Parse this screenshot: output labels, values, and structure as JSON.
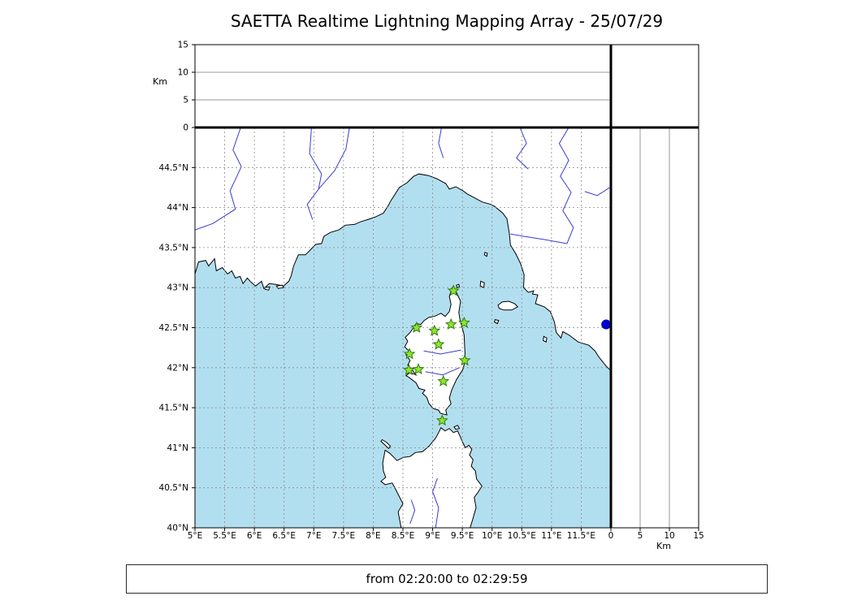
{
  "title": "SAETTA Realtime Lightning Mapping Array - 25/07/29",
  "time_bar": {
    "label": "from 02:20:00 to 02:29:59"
  },
  "colors": {
    "sea": "#b2dfef",
    "land": "#ffffff",
    "coastline": "#000000",
    "river": "#3b3bd1",
    "grid": "#8a8a8a",
    "panel_grid": "#9a9a9a",
    "station_fill": "#8ae82e",
    "station_edge": "#35790f",
    "source_fill": "#0000cc",
    "frame": "#000000"
  },
  "chart_data": {
    "type": "scatter",
    "title": "SAETTA Realtime Lightning Mapping Array - 25/07/29",
    "time_window": "from 02:20:00 to 02:29:59",
    "map_panel": {
      "lon_range": [
        5.0,
        12.0
      ],
      "lat_range": [
        40.0,
        45.0
      ],
      "lon_ticks": [
        5,
        5.5,
        6,
        6.5,
        7,
        7.5,
        8,
        8.5,
        9,
        9.5,
        10,
        10.5,
        11,
        11.5
      ],
      "lon_tick_labels": [
        "5°E",
        "5.5°E",
        "6°E",
        "6.5°E",
        "7°E",
        "7.5°E",
        "8°E",
        "8.5°E",
        "9°E",
        "9.5°E",
        "10°E",
        "10.5°E",
        "11°E",
        "11.5°E"
      ],
      "lat_ticks": [
        40,
        40.5,
        41,
        41.5,
        42,
        42.5,
        43,
        43.5,
        44,
        44.5
      ],
      "lat_tick_labels": [
        "40°N",
        "40.5°N",
        "41°N",
        "41.5°N",
        "42°N",
        "42.5°N",
        "43°N",
        "43.5°N",
        "44°N",
        "44.5°N"
      ],
      "grid": true
    },
    "altitude_axis": {
      "range_km": [
        0,
        15
      ],
      "ticks": [
        0,
        5,
        10,
        15
      ],
      "tick_labels": [
        "0",
        "5",
        "10",
        "15"
      ],
      "unit_label": "Km",
      "gridlines_km": [
        5,
        10
      ]
    },
    "stations": [
      {
        "lon": 9.35,
        "lat": 42.96
      },
      {
        "lon": 8.73,
        "lat": 42.5
      },
      {
        "lon": 9.03,
        "lat": 42.46
      },
      {
        "lon": 9.31,
        "lat": 42.54
      },
      {
        "lon": 9.53,
        "lat": 42.56
      },
      {
        "lon": 9.1,
        "lat": 42.29
      },
      {
        "lon": 8.61,
        "lat": 42.17
      },
      {
        "lon": 9.54,
        "lat": 42.09
      },
      {
        "lon": 8.6,
        "lat": 41.97
      },
      {
        "lon": 8.76,
        "lat": 41.98
      },
      {
        "lon": 9.18,
        "lat": 41.83
      },
      {
        "lon": 9.16,
        "lat": 41.34
      }
    ],
    "sources": [
      {
        "lon": 11.92,
        "lat": 42.54,
        "alt_km": 0
      }
    ],
    "basemap": {
      "mainland": [
        [
          5.0,
          43.17
        ],
        [
          5.06,
          43.32
        ],
        [
          5.18,
          43.34
        ],
        [
          5.23,
          43.27
        ],
        [
          5.33,
          43.36
        ],
        [
          5.36,
          43.21
        ],
        [
          5.46,
          43.25
        ],
        [
          5.55,
          43.17
        ],
        [
          5.62,
          43.21
        ],
        [
          5.68,
          43.12
        ],
        [
          5.76,
          43.14
        ],
        [
          5.81,
          43.05
        ],
        [
          5.88,
          43.12
        ],
        [
          5.94,
          43.07
        ],
        [
          6.02,
          43.02
        ],
        [
          6.12,
          43.08
        ],
        [
          6.16,
          42.99
        ],
        [
          6.25,
          43.05
        ],
        [
          6.36,
          43.04
        ],
        [
          6.49,
          43.02
        ],
        [
          6.58,
          43.08
        ],
        [
          6.62,
          43.15
        ],
        [
          6.66,
          43.27
        ],
        [
          6.74,
          43.41
        ],
        [
          6.86,
          43.41
        ],
        [
          6.94,
          43.47
        ],
        [
          7.03,
          43.54
        ],
        [
          7.13,
          43.55
        ],
        [
          7.17,
          43.64
        ],
        [
          7.28,
          43.69
        ],
        [
          7.42,
          43.72
        ],
        [
          7.53,
          43.78
        ],
        [
          7.69,
          43.79
        ],
        [
          7.78,
          43.82
        ],
        [
          7.91,
          43.85
        ],
        [
          8.03,
          43.88
        ],
        [
          8.17,
          43.93
        ],
        [
          8.25,
          44.02
        ],
        [
          8.3,
          44.09
        ],
        [
          8.44,
          44.25
        ],
        [
          8.57,
          44.31
        ],
        [
          8.68,
          44.39
        ],
        [
          8.77,
          44.42
        ],
        [
          8.93,
          44.4
        ],
        [
          9.07,
          44.36
        ],
        [
          9.22,
          44.3
        ],
        [
          9.28,
          44.23
        ],
        [
          9.39,
          44.26
        ],
        [
          9.51,
          44.21
        ],
        [
          9.58,
          44.17
        ],
        [
          9.71,
          44.12
        ],
        [
          9.83,
          44.07
        ],
        [
          9.98,
          44.04
        ],
        [
          10.05,
          44.01
        ],
        [
          10.18,
          43.93
        ],
        [
          10.25,
          43.86
        ],
        [
          10.29,
          43.68
        ],
        [
          10.31,
          43.53
        ],
        [
          10.4,
          43.42
        ],
        [
          10.48,
          43.3
        ],
        [
          10.54,
          43.16
        ],
        [
          10.53,
          43.0
        ],
        [
          10.61,
          42.94
        ],
        [
          10.7,
          42.96
        ],
        [
          10.68,
          42.92
        ],
        [
          10.77,
          42.91
        ],
        [
          10.73,
          42.8
        ],
        [
          10.88,
          42.76
        ],
        [
          10.98,
          42.7
        ],
        [
          11.05,
          42.57
        ],
        [
          11.08,
          42.44
        ],
        [
          11.16,
          42.37
        ],
        [
          11.19,
          42.45
        ],
        [
          11.29,
          42.41
        ],
        [
          11.45,
          42.32
        ],
        [
          11.63,
          42.28
        ],
        [
          11.73,
          42.21
        ],
        [
          11.8,
          42.13
        ],
        [
          11.92,
          42.02
        ],
        [
          12.0,
          41.96
        ],
        [
          12.0,
          45.0
        ],
        [
          5.0,
          45.0
        ]
      ],
      "corsica": [
        [
          9.33,
          43.0
        ],
        [
          9.4,
          42.94
        ],
        [
          9.47,
          42.83
        ],
        [
          9.44,
          42.69
        ],
        [
          9.46,
          42.6
        ],
        [
          9.53,
          42.41
        ],
        [
          9.54,
          42.23
        ],
        [
          9.55,
          42.1
        ],
        [
          9.51,
          41.98
        ],
        [
          9.4,
          41.85
        ],
        [
          9.32,
          41.72
        ],
        [
          9.28,
          41.62
        ],
        [
          9.31,
          41.55
        ],
        [
          9.22,
          41.47
        ],
        [
          9.24,
          41.41
        ],
        [
          9.13,
          41.43
        ],
        [
          9.1,
          41.47
        ],
        [
          9.01,
          41.49
        ],
        [
          8.94,
          41.55
        ],
        [
          8.9,
          41.63
        ],
        [
          8.83,
          41.68
        ],
        [
          8.87,
          41.72
        ],
        [
          8.77,
          41.74
        ],
        [
          8.72,
          41.81
        ],
        [
          8.6,
          41.88
        ],
        [
          8.55,
          41.9
        ],
        [
          8.62,
          41.94
        ],
        [
          8.72,
          41.91
        ],
        [
          8.66,
          41.97
        ],
        [
          8.58,
          42.03
        ],
        [
          8.62,
          42.09
        ],
        [
          8.55,
          42.16
        ],
        [
          8.6,
          42.21
        ],
        [
          8.53,
          42.26
        ],
        [
          8.58,
          42.33
        ],
        [
          8.54,
          42.38
        ],
        [
          8.61,
          42.43
        ],
        [
          8.66,
          42.48
        ],
        [
          8.72,
          42.55
        ],
        [
          8.8,
          42.54
        ],
        [
          8.86,
          42.59
        ],
        [
          8.94,
          42.63
        ],
        [
          9.03,
          42.64
        ],
        [
          9.14,
          42.68
        ],
        [
          9.21,
          42.64
        ],
        [
          9.28,
          42.7
        ],
        [
          9.31,
          42.79
        ],
        [
          9.28,
          42.89
        ]
      ],
      "sardinia": [
        [
          8.47,
          40.0
        ],
        [
          8.42,
          40.2
        ],
        [
          8.5,
          40.3
        ],
        [
          8.39,
          40.46
        ],
        [
          8.32,
          40.56
        ],
        [
          8.2,
          40.54
        ],
        [
          8.13,
          40.58
        ],
        [
          8.21,
          40.63
        ],
        [
          8.17,
          40.71
        ],
        [
          8.16,
          40.81
        ],
        [
          8.2,
          40.97
        ],
        [
          8.28,
          40.93
        ],
        [
          8.4,
          40.84
        ],
        [
          8.51,
          40.88
        ],
        [
          8.62,
          40.89
        ],
        [
          8.71,
          40.94
        ],
        [
          8.83,
          40.95
        ],
        [
          8.94,
          41.02
        ],
        [
          9.05,
          41.12
        ],
        [
          9.1,
          41.19
        ],
        [
          9.14,
          41.25
        ],
        [
          9.21,
          41.21
        ],
        [
          9.28,
          41.24
        ],
        [
          9.35,
          41.19
        ],
        [
          9.42,
          41.21
        ],
        [
          9.47,
          41.13
        ],
        [
          9.51,
          41.06
        ],
        [
          9.55,
          41.0
        ],
        [
          9.61,
          41.03
        ],
        [
          9.66,
          40.98
        ],
        [
          9.62,
          40.91
        ],
        [
          9.68,
          40.85
        ],
        [
          9.65,
          40.77
        ],
        [
          9.72,
          40.71
        ],
        [
          9.74,
          40.61
        ],
        [
          9.83,
          40.52
        ],
        [
          9.76,
          40.44
        ],
        [
          9.7,
          40.38
        ],
        [
          9.73,
          40.25
        ],
        [
          9.68,
          40.12
        ],
        [
          9.63,
          40.0
        ]
      ],
      "islands": [
        {
          "name": "elba",
          "points": [
            [
              10.1,
              42.78
            ],
            [
              10.17,
              42.82
            ],
            [
              10.28,
              42.83
            ],
            [
              10.38,
              42.8
            ],
            [
              10.43,
              42.76
            ],
            [
              10.33,
              42.72
            ],
            [
              10.2,
              42.72
            ],
            [
              10.12,
              42.74
            ]
          ]
        },
        {
          "name": "capraia",
          "points": [
            [
              9.81,
              43.08
            ],
            [
              9.87,
              43.06
            ],
            [
              9.86,
              43.0
            ],
            [
              9.8,
              43.02
            ]
          ]
        },
        {
          "name": "gorgona",
          "points": [
            [
              9.88,
              43.44
            ],
            [
              9.92,
              43.43
            ],
            [
              9.91,
              43.39
            ],
            [
              9.87,
              43.41
            ]
          ]
        },
        {
          "name": "giglio",
          "points": [
            [
              10.87,
              42.39
            ],
            [
              10.92,
              42.37
            ],
            [
              10.91,
              42.32
            ],
            [
              10.86,
              42.34
            ]
          ]
        },
        {
          "name": "pianosa",
          "points": [
            [
              10.05,
              42.6
            ],
            [
              10.11,
              42.59
            ],
            [
              10.09,
              42.55
            ],
            [
              10.04,
              42.57
            ]
          ]
        },
        {
          "name": "giraglia",
          "points": [
            [
              9.4,
              43.03
            ],
            [
              9.44,
              43.04
            ],
            [
              9.45,
              43.01
            ],
            [
              9.41,
              43.0
            ]
          ]
        },
        {
          "name": "porquerolles",
          "points": [
            [
              6.17,
              43.0
            ],
            [
              6.26,
              43.01
            ],
            [
              6.24,
              42.97
            ],
            [
              6.18,
              42.98
            ]
          ]
        },
        {
          "name": "port-cros",
          "points": [
            [
              6.37,
              43.02
            ],
            [
              6.47,
              43.03
            ],
            [
              6.49,
              43.0
            ],
            [
              6.4,
              42.99
            ]
          ]
        },
        {
          "name": "asinara",
          "points": [
            [
              8.15,
              41.1
            ],
            [
              8.22,
              41.07
            ],
            [
              8.29,
              41.02
            ],
            [
              8.26,
              40.99
            ],
            [
              8.19,
              41.04
            ],
            [
              8.13,
              41.08
            ]
          ]
        },
        {
          "name": "maddalena",
          "points": [
            [
              9.36,
              41.26
            ],
            [
              9.42,
              41.28
            ],
            [
              9.45,
              41.24
            ],
            [
              9.39,
              41.23
            ]
          ]
        }
      ],
      "rivers": [
        [
          [
            5.77,
            45.0
          ],
          [
            5.64,
            44.72
          ],
          [
            5.78,
            44.51
          ],
          [
            5.59,
            44.21
          ],
          [
            5.68,
            43.98
          ],
          [
            5.3,
            43.8
          ],
          [
            5.0,
            43.72
          ]
        ],
        [
          [
            6.96,
            45.0
          ],
          [
            6.93,
            44.67
          ],
          [
            7.13,
            44.42
          ],
          [
            7.08,
            44.23
          ]
        ],
        [
          [
            7.6,
            45.0
          ],
          [
            7.54,
            44.73
          ],
          [
            7.35,
            44.46
          ],
          [
            7.08,
            44.23
          ]
        ],
        [
          [
            7.08,
            44.23
          ],
          [
            6.89,
            44.04
          ],
          [
            6.98,
            43.85
          ]
        ],
        [
          [
            9.15,
            45.0
          ],
          [
            9.1,
            44.8
          ],
          [
            9.18,
            44.62
          ]
        ],
        [
          [
            10.47,
            45.0
          ],
          [
            10.58,
            44.8
          ],
          [
            10.41,
            44.62
          ],
          [
            10.61,
            44.48
          ]
        ],
        [
          [
            11.29,
            45.0
          ],
          [
            11.13,
            44.8
          ],
          [
            11.29,
            44.59
          ],
          [
            11.15,
            44.39
          ],
          [
            11.33,
            44.19
          ],
          [
            11.19,
            43.96
          ],
          [
            11.37,
            43.75
          ],
          [
            11.26,
            43.55
          ]
        ],
        [
          [
            11.26,
            43.55
          ],
          [
            10.88,
            43.6
          ],
          [
            10.54,
            43.64
          ],
          [
            10.31,
            43.67
          ]
        ],
        [
          [
            12.0,
            44.26
          ],
          [
            11.77,
            44.15
          ],
          [
            11.56,
            44.2
          ]
        ],
        [
          [
            8.85,
            42.21
          ],
          [
            9.13,
            42.17
          ],
          [
            9.48,
            42.22
          ]
        ],
        [
          [
            8.88,
            41.95
          ],
          [
            9.17,
            41.91
          ],
          [
            9.45,
            42.0
          ]
        ],
        [
          [
            9.05,
            40.0
          ],
          [
            9.1,
            40.25
          ],
          [
            9.0,
            40.45
          ],
          [
            9.08,
            40.62
          ]
        ],
        [
          [
            8.62,
            40.05
          ],
          [
            8.7,
            40.22
          ],
          [
            8.64,
            40.35
          ]
        ]
      ]
    }
  }
}
